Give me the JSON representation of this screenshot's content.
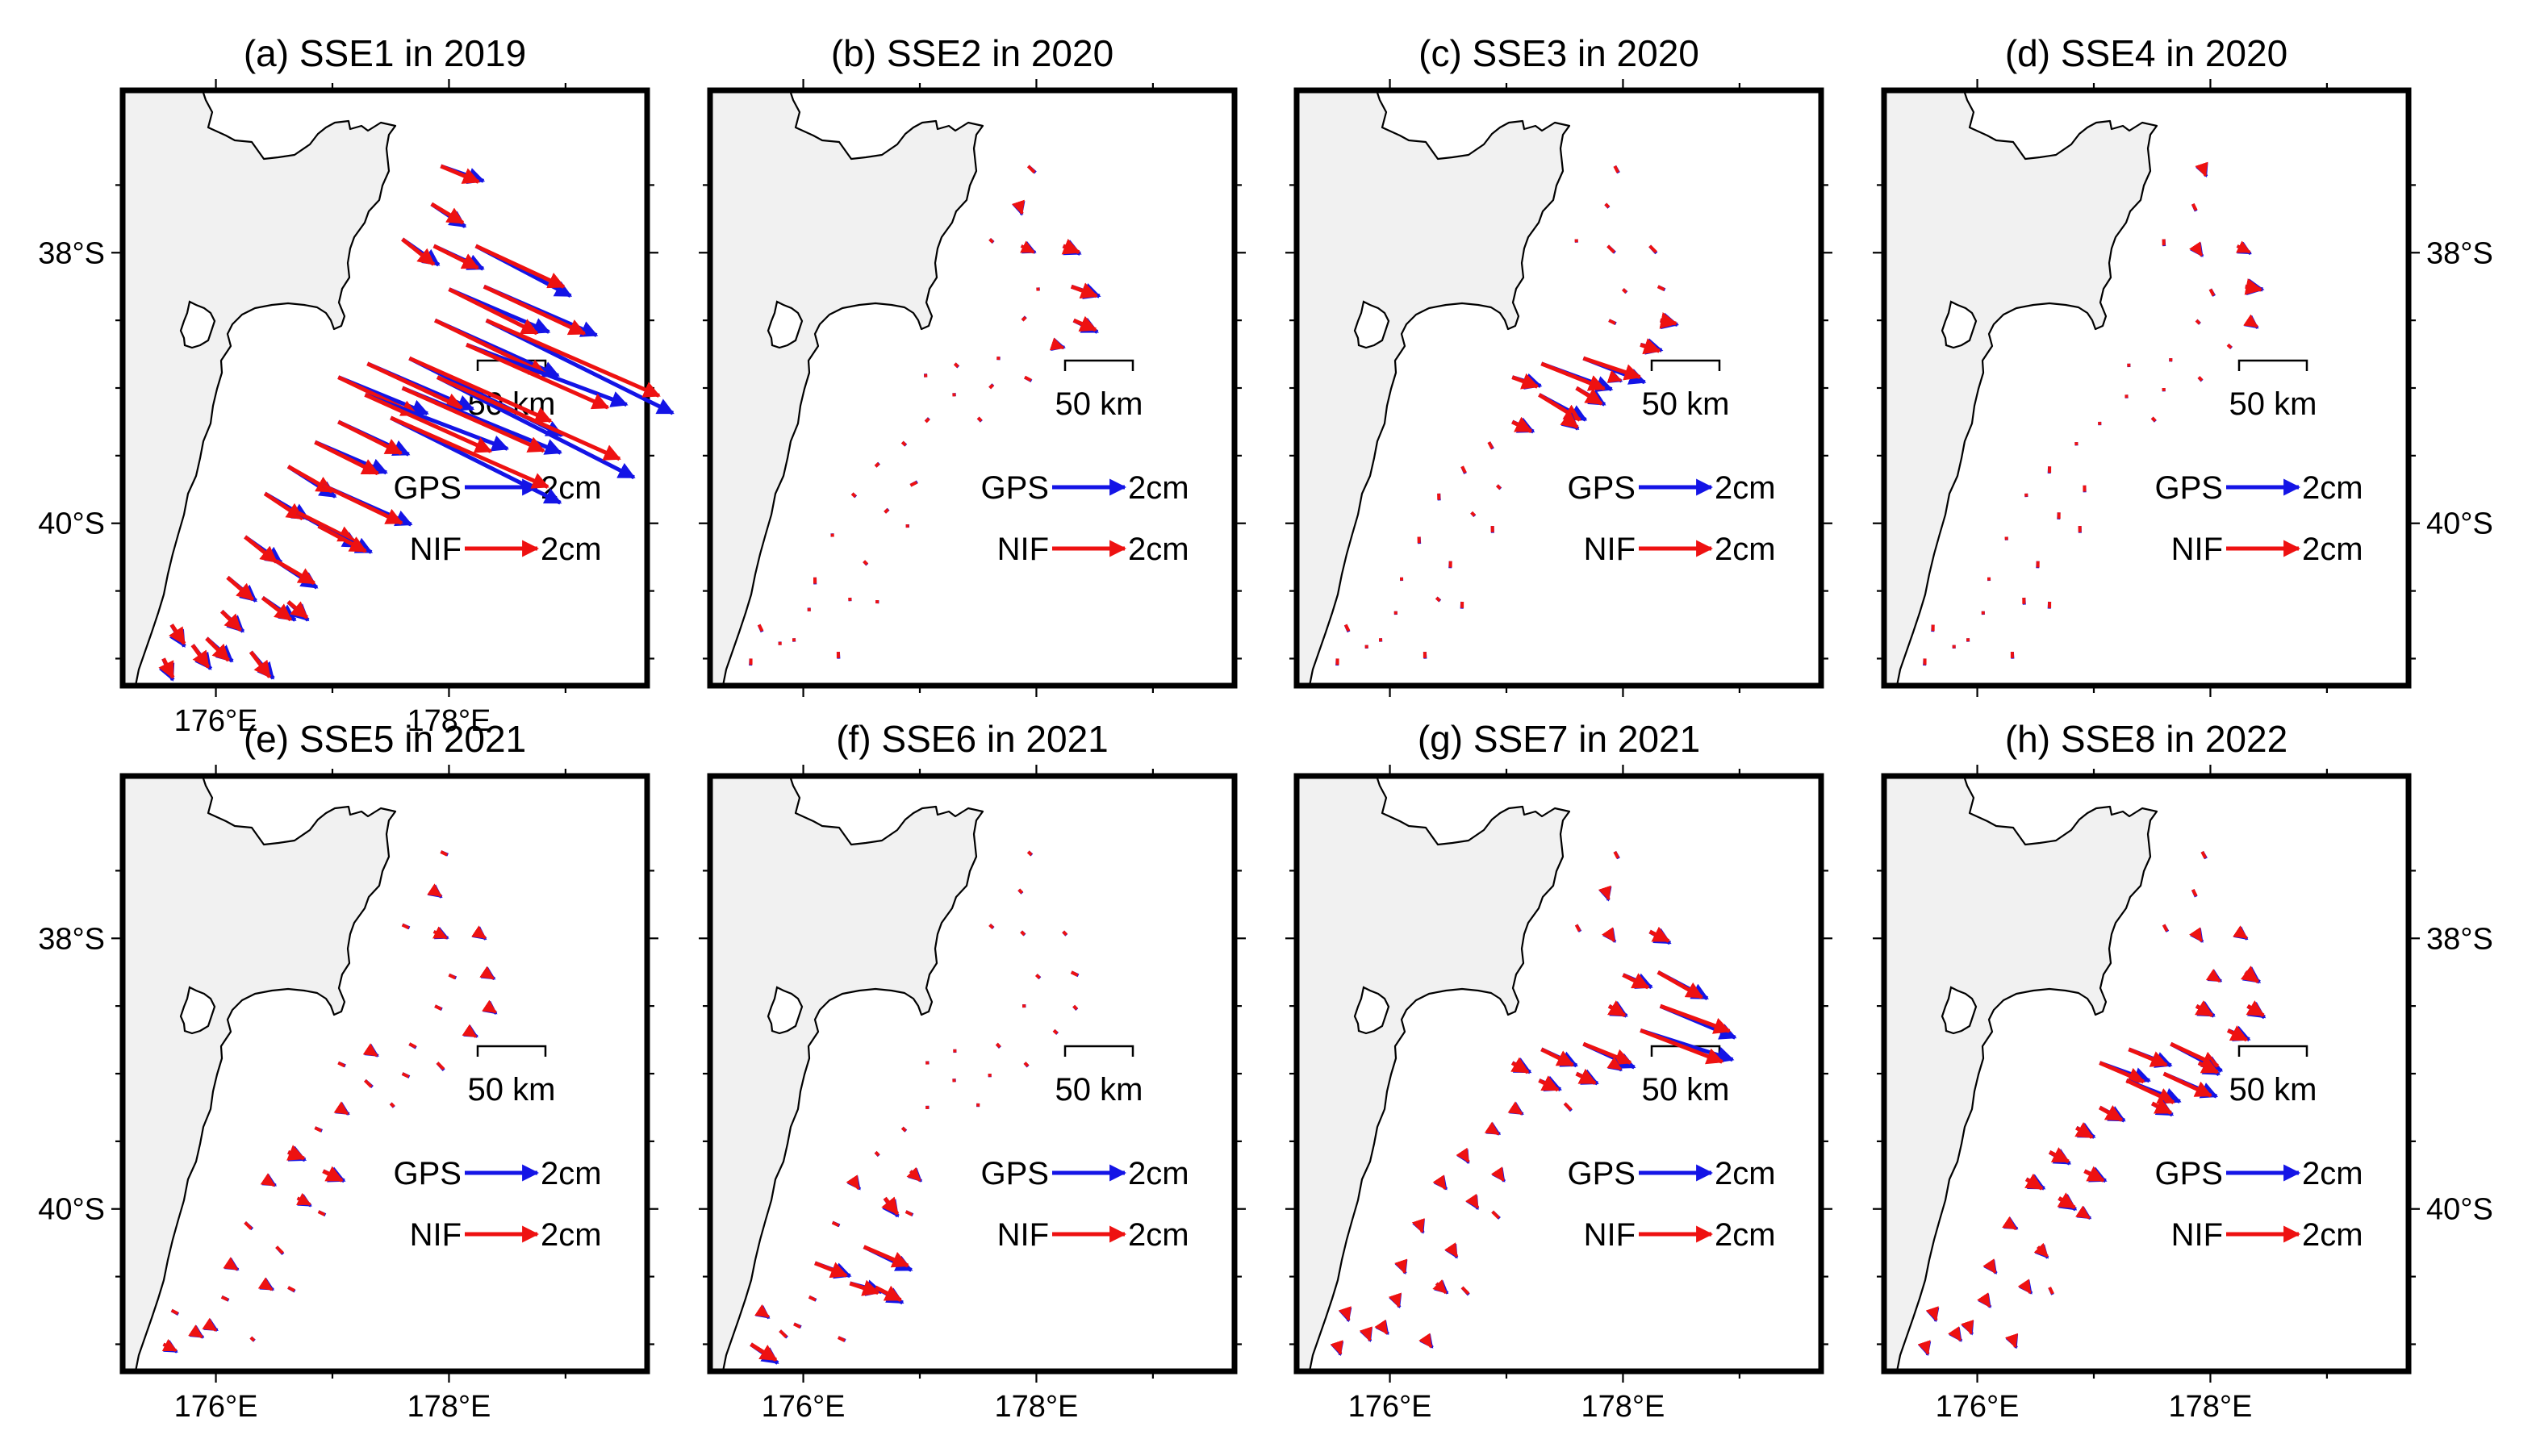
{
  "figure": {
    "lon_range": [
      175.2,
      179.7
    ],
    "lat_range": [
      -41.2,
      -36.8
    ],
    "x_tick_labels": [
      {
        "lon": 176,
        "label": "176°E"
      },
      {
        "lon": 178,
        "label": "178°E"
      }
    ],
    "y_tick_labels": [
      {
        "lat": -38,
        "label": "38°S"
      },
      {
        "lat": -40,
        "label": "40°S"
      }
    ],
    "scale_bar_label": "50 km",
    "legend": [
      {
        "key": "gps",
        "label": "GPS",
        "amount": "2cm",
        "color": "#1414e6"
      },
      {
        "key": "nif",
        "label": "NIF",
        "amount": "2cm",
        "color": "#ee1111"
      }
    ],
    "land_color": "#f1f1f1",
    "sea_color": "#ffffff"
  },
  "panels": [
    {
      "id": "a",
      "title": "(a) SSE1 in 2019",
      "x_ticks": true,
      "left_y_ticks": true,
      "right_y_ticks": false
    },
    {
      "id": "b",
      "title": "(b) SSE2 in 2020",
      "x_ticks": false,
      "left_y_ticks": false,
      "right_y_ticks": false
    },
    {
      "id": "c",
      "title": "(c) SSE3 in 2020",
      "x_ticks": false,
      "left_y_ticks": false,
      "right_y_ticks": false
    },
    {
      "id": "d",
      "title": "(d) SSE4 in 2020",
      "x_ticks": false,
      "left_y_ticks": false,
      "right_y_ticks": true
    },
    {
      "id": "e",
      "title": "(e) SSE5 in 2021",
      "x_ticks": true,
      "left_y_ticks": true,
      "right_y_ticks": false
    },
    {
      "id": "f",
      "title": "(f) SSE6 in 2021",
      "x_ticks": true,
      "left_y_ticks": false,
      "right_y_ticks": false
    },
    {
      "id": "g",
      "title": "(g) SSE7 in 2021",
      "x_ticks": true,
      "left_y_ticks": false,
      "right_y_ticks": false
    },
    {
      "id": "h",
      "title": "(h) SSE8 in 2022",
      "x_ticks": true,
      "left_y_ticks": false,
      "right_y_ticks": true
    }
  ],
  "stations": [
    [
      177.93,
      -37.36
    ],
    [
      177.85,
      -37.64
    ],
    [
      177.87,
      -37.95
    ],
    [
      177.6,
      -37.9
    ],
    [
      178.23,
      -37.95
    ],
    [
      178.3,
      -38.25
    ],
    [
      178.0,
      -38.27
    ],
    [
      178.32,
      -38.5
    ],
    [
      177.88,
      -38.5
    ],
    [
      178.15,
      -38.68
    ],
    [
      177.66,
      -38.78
    ],
    [
      177.3,
      -38.82
    ],
    [
      177.05,
      -38.92
    ],
    [
      177.9,
      -38.92
    ],
    [
      177.6,
      -39.0
    ],
    [
      177.28,
      -39.05
    ],
    [
      177.5,
      -39.22
    ],
    [
      177.05,
      -39.25
    ],
    [
      176.85,
      -39.4
    ],
    [
      176.62,
      -39.58
    ],
    [
      176.92,
      -39.72
    ],
    [
      176.42,
      -39.78
    ],
    [
      176.7,
      -39.92
    ],
    [
      176.88,
      -40.02
    ],
    [
      176.25,
      -40.1
    ],
    [
      176.52,
      -40.28
    ],
    [
      176.1,
      -40.4
    ],
    [
      176.4,
      -40.55
    ],
    [
      176.62,
      -40.58
    ],
    [
      176.05,
      -40.65
    ],
    [
      175.92,
      -40.85
    ],
    [
      175.62,
      -40.75
    ],
    [
      175.8,
      -40.9
    ],
    [
      176.3,
      -40.95
    ],
    [
      175.55,
      -41.0
    ]
  ],
  "displacements": {
    "a": [
      [
        1.2,
        -0.5
      ],
      [
        1.0,
        -0.6
      ],
      [
        1.4,
        -0.7
      ],
      [
        1.0,
        -0.8
      ],
      [
        2.8,
        -1.3
      ],
      [
        3.2,
        -1.5
      ],
      [
        2.8,
        -1.4
      ],
      [
        5.5,
        -2.4
      ],
      [
        3.5,
        -1.7
      ],
      [
        4.5,
        -2.0
      ],
      [
        4.5,
        -2.0
      ],
      [
        3.0,
        -1.4
      ],
      [
        2.5,
        -1.2
      ],
      [
        5.8,
        -2.6
      ],
      [
        4.5,
        -2.0
      ],
      [
        4.0,
        -1.8
      ],
      [
        5.0,
        -2.2
      ],
      [
        2.0,
        -1.0
      ],
      [
        2.0,
        -1.0
      ],
      [
        1.4,
        -0.8
      ],
      [
        2.5,
        -1.2
      ],
      [
        1.2,
        -0.8
      ],
      [
        1.8,
        -0.9
      ],
      [
        1.5,
        -0.8
      ],
      [
        1.0,
        -0.8
      ],
      [
        1.2,
        -0.7
      ],
      [
        0.8,
        -0.7
      ],
      [
        0.9,
        -0.7
      ],
      [
        0.6,
        -0.5
      ],
      [
        0.6,
        -0.6
      ],
      [
        0.7,
        -0.7
      ],
      [
        0.4,
        -0.6
      ],
      [
        0.5,
        -0.7
      ],
      [
        0.6,
        -0.8
      ],
      [
        0.3,
        -0.6
      ]
    ],
    "b": [
      [
        0.2,
        -0.2
      ],
      [
        0.1,
        -0.3
      ],
      [
        0.4,
        -0.2
      ],
      [
        0.1,
        -0.1
      ],
      [
        0.5,
        -0.2
      ],
      [
        0.8,
        -0.3
      ],
      [
        0.1,
        0.0
      ],
      [
        0.7,
        -0.3
      ],
      [
        0.1,
        0.1
      ],
      [
        0.3,
        -0.1
      ],
      [
        0.1,
        0.0
      ],
      [
        0.1,
        -0.1
      ],
      [
        0.0,
        0.1
      ],
      [
        0.2,
        -0.1
      ],
      [
        0.1,
        0.1
      ],
      [
        0.1,
        0.0
      ],
      [
        0.1,
        -0.1
      ],
      [
        0.1,
        0.1
      ],
      [
        0.1,
        -0.1
      ],
      [
        0.1,
        0.1
      ],
      [
        0.2,
        0.1
      ],
      [
        0.1,
        -0.1
      ],
      [
        0.1,
        0.1
      ],
      [
        0.1,
        0.0
      ],
      [
        0.0,
        0.1
      ],
      [
        0.1,
        -0.1
      ],
      [
        0.0,
        -0.2
      ],
      [
        0.0,
        -0.1
      ],
      [
        0.1,
        0.0
      ],
      [
        0.0,
        0.1
      ],
      [
        0.0,
        -0.1
      ],
      [
        0.1,
        -0.2
      ],
      [
        0.0,
        0.1
      ],
      [
        0.0,
        -0.2
      ],
      [
        0.0,
        -0.2
      ]
    ],
    "c": [
      [
        0.1,
        -0.2
      ],
      [
        0.1,
        -0.1
      ],
      [
        0.2,
        -0.2
      ],
      [
        0.0,
        -0.1
      ],
      [
        0.2,
        -0.2
      ],
      [
        0.2,
        -0.1
      ],
      [
        0.1,
        -0.1
      ],
      [
        0.5,
        -0.1
      ],
      [
        0.2,
        -0.1
      ],
      [
        0.6,
        -0.2
      ],
      [
        1.8,
        -0.6
      ],
      [
        2.0,
        -0.8
      ],
      [
        0.8,
        -0.3
      ],
      [
        0.3,
        -0.1
      ],
      [
        0.8,
        -0.5
      ],
      [
        1.3,
        -0.8
      ],
      [
        0.4,
        -0.3
      ],
      [
        0.6,
        -0.3
      ],
      [
        0.1,
        -0.2
      ],
      [
        0.1,
        -0.2
      ],
      [
        0.1,
        -0.1
      ],
      [
        0.0,
        -0.2
      ],
      [
        0.1,
        -0.1
      ],
      [
        0.0,
        -0.2
      ],
      [
        0.0,
        -0.2
      ],
      [
        0.0,
        -0.2
      ],
      [
        0.0,
        -0.1
      ],
      [
        0.1,
        -0.1
      ],
      [
        0.0,
        -0.2
      ],
      [
        0.0,
        -0.1
      ],
      [
        0.0,
        -0.1
      ],
      [
        0.1,
        -0.2
      ],
      [
        0.0,
        -0.1
      ],
      [
        0.0,
        -0.2
      ],
      [
        0.0,
        -0.2
      ]
    ],
    "d": [
      [
        0.1,
        -0.3
      ],
      [
        0.1,
        -0.2
      ],
      [
        0.2,
        -0.3
      ],
      [
        0.0,
        -0.2
      ],
      [
        0.4,
        -0.2
      ],
      [
        0.5,
        -0.1
      ],
      [
        0.1,
        -0.2
      ],
      [
        0.3,
        -0.2
      ],
      [
        0.1,
        -0.1
      ],
      [
        0.1,
        -0.1
      ],
      [
        0.0,
        -0.1
      ],
      [
        0.0,
        -0.1
      ],
      [
        0.0,
        0.0
      ],
      [
        0.1,
        -0.1
      ],
      [
        0.0,
        -0.1
      ],
      [
        0.0,
        -0.1
      ],
      [
        0.1,
        -0.1
      ],
      [
        0.0,
        -0.1
      ],
      [
        0.0,
        -0.1
      ],
      [
        0.0,
        -0.2
      ],
      [
        0.0,
        -0.2
      ],
      [
        0.0,
        -0.1
      ],
      [
        0.0,
        -0.2
      ],
      [
        0.0,
        -0.2
      ],
      [
        0.0,
        -0.1
      ],
      [
        0.0,
        -0.2
      ],
      [
        0.0,
        -0.1
      ],
      [
        0.0,
        -0.2
      ],
      [
        0.0,
        -0.2
      ],
      [
        0.0,
        -0.1
      ],
      [
        0.0,
        -0.1
      ],
      [
        0.0,
        -0.2
      ],
      [
        0.0,
        -0.1
      ],
      [
        0.0,
        -0.2
      ],
      [
        0.0,
        -0.2
      ]
    ],
    "e": [
      [
        0.2,
        -0.1
      ],
      [
        0.3,
        -0.2
      ],
      [
        0.4,
        -0.2
      ],
      [
        0.2,
        -0.1
      ],
      [
        0.3,
        -0.2
      ],
      [
        0.3,
        -0.2
      ],
      [
        0.2,
        -0.1
      ],
      [
        0.3,
        -0.2
      ],
      [
        0.2,
        -0.1
      ],
      [
        0.3,
        -0.2
      ],
      [
        0.2,
        -0.1
      ],
      [
        0.3,
        -0.2
      ],
      [
        0.2,
        -0.1
      ],
      [
        0.2,
        -0.2
      ],
      [
        0.2,
        -0.1
      ],
      [
        0.2,
        -0.2
      ],
      [
        0.1,
        -0.1
      ],
      [
        0.3,
        -0.2
      ],
      [
        0.2,
        -0.1
      ],
      [
        0.5,
        -0.2
      ],
      [
        0.6,
        -0.3
      ],
      [
        0.3,
        -0.2
      ],
      [
        0.4,
        -0.2
      ],
      [
        0.2,
        -0.1
      ],
      [
        0.2,
        -0.2
      ],
      [
        0.2,
        -0.2
      ],
      [
        0.3,
        -0.2
      ],
      [
        0.3,
        -0.2
      ],
      [
        0.2,
        -0.1
      ],
      [
        0.2,
        -0.1
      ],
      [
        0.3,
        -0.2
      ],
      [
        0.2,
        -0.1
      ],
      [
        0.3,
        -0.2
      ],
      [
        0.1,
        -0.1
      ],
      [
        0.4,
        -0.2
      ]
    ],
    "f": [
      [
        0.1,
        -0.1
      ],
      [
        0.1,
        -0.1
      ],
      [
        0.1,
        -0.1
      ],
      [
        0.1,
        -0.1
      ],
      [
        0.1,
        -0.1
      ],
      [
        0.2,
        -0.1
      ],
      [
        0.1,
        -0.1
      ],
      [
        0.1,
        -0.1
      ],
      [
        0.1,
        0.0
      ],
      [
        0.1,
        -0.1
      ],
      [
        0.1,
        -0.1
      ],
      [
        0.0,
        -0.1
      ],
      [
        0.1,
        0.0
      ],
      [
        0.1,
        -0.1
      ],
      [
        0.0,
        -0.1
      ],
      [
        0.1,
        0.0
      ],
      [
        0.0,
        -0.1
      ],
      [
        0.1,
        0.0
      ],
      [
        0.1,
        -0.1
      ],
      [
        0.1,
        -0.1
      ],
      [
        0.3,
        -0.3
      ],
      [
        0.2,
        -0.3
      ],
      [
        0.4,
        -0.5
      ],
      [
        0.2,
        -0.1
      ],
      [
        0.2,
        -0.1
      ],
      [
        1.4,
        -0.6
      ],
      [
        1.0,
        -0.4
      ],
      [
        0.9,
        -0.3
      ],
      [
        0.8,
        -0.4
      ],
      [
        0.2,
        -0.1
      ],
      [
        0.2,
        -0.1
      ],
      [
        0.3,
        -0.2
      ],
      [
        0.2,
        -0.2
      ],
      [
        0.2,
        -0.1
      ],
      [
        0.8,
        -0.5
      ]
    ],
    "g": [
      [
        0.1,
        -0.2
      ],
      [
        0.1,
        -0.3
      ],
      [
        0.2,
        -0.3
      ],
      [
        0.1,
        -0.2
      ],
      [
        0.6,
        -0.3
      ],
      [
        1.4,
        -0.8
      ],
      [
        0.8,
        -0.4
      ],
      [
        2.2,
        -0.8
      ],
      [
        0.5,
        -0.3
      ],
      [
        2.6,
        -1.0
      ],
      [
        1.5,
        -0.6
      ],
      [
        1.0,
        -0.5
      ],
      [
        0.5,
        -0.3
      ],
      [
        0.3,
        -0.2
      ],
      [
        0.6,
        -0.3
      ],
      [
        0.6,
        -0.3
      ],
      [
        0.2,
        -0.2
      ],
      [
        0.3,
        -0.2
      ],
      [
        0.3,
        -0.2
      ],
      [
        0.2,
        -0.3
      ],
      [
        0.2,
        -0.3
      ],
      [
        0.2,
        -0.3
      ],
      [
        0.2,
        -0.3
      ],
      [
        0.2,
        -0.2
      ],
      [
        0.1,
        -0.3
      ],
      [
        0.2,
        -0.3
      ],
      [
        0.1,
        -0.3
      ],
      [
        0.3,
        -0.3
      ],
      [
        0.2,
        -0.2
      ],
      [
        0.1,
        -0.3
      ],
      [
        0.2,
        -0.3
      ],
      [
        0.1,
        -0.3
      ],
      [
        0.1,
        -0.3
      ],
      [
        0.2,
        -0.3
      ],
      [
        0.1,
        -0.3
      ]
    ],
    "h": [
      [
        0.1,
        -0.2
      ],
      [
        0.1,
        -0.2
      ],
      [
        0.2,
        -0.3
      ],
      [
        0.1,
        -0.2
      ],
      [
        0.3,
        -0.2
      ],
      [
        0.4,
        -0.3
      ],
      [
        0.3,
        -0.2
      ],
      [
        0.5,
        -0.3
      ],
      [
        0.5,
        -0.3
      ],
      [
        0.6,
        -0.3
      ],
      [
        1.5,
        -0.7
      ],
      [
        1.2,
        -0.5
      ],
      [
        1.4,
        -0.6
      ],
      [
        0.6,
        -0.3
      ],
      [
        1.5,
        -0.7
      ],
      [
        1.5,
        -0.7
      ],
      [
        0.6,
        -0.3
      ],
      [
        0.7,
        -0.4
      ],
      [
        0.5,
        -0.3
      ],
      [
        0.6,
        -0.3
      ],
      [
        0.6,
        -0.3
      ],
      [
        0.5,
        -0.3
      ],
      [
        0.5,
        -0.3
      ],
      [
        0.3,
        -0.2
      ],
      [
        0.3,
        -0.2
      ],
      [
        0.3,
        -0.3
      ],
      [
        0.2,
        -0.3
      ],
      [
        0.2,
        -0.3
      ],
      [
        0.1,
        -0.2
      ],
      [
        0.2,
        -0.3
      ],
      [
        0.1,
        -0.3
      ],
      [
        0.1,
        -0.3
      ],
      [
        0.2,
        -0.3
      ],
      [
        0.1,
        -0.3
      ],
      [
        0.1,
        -0.3
      ]
    ]
  }
}
